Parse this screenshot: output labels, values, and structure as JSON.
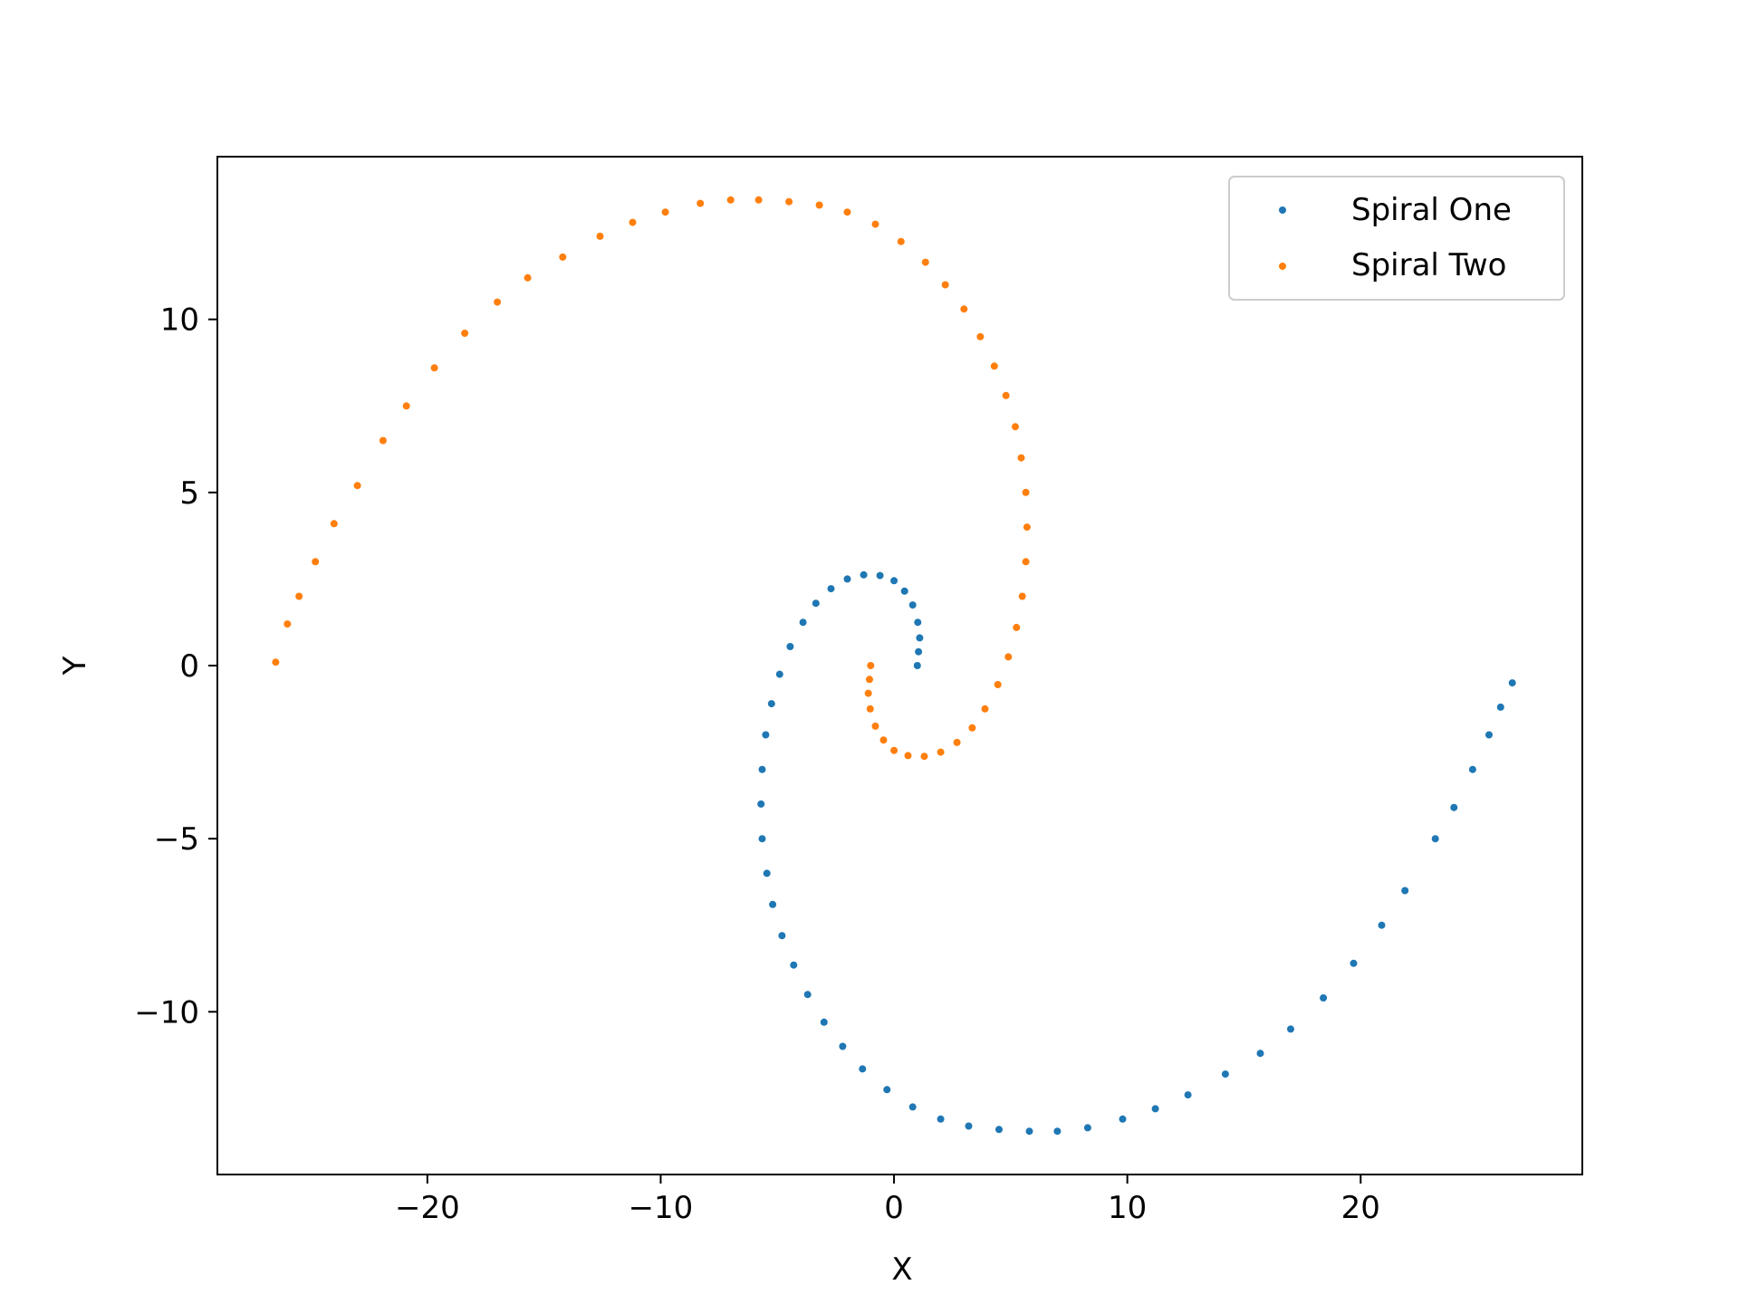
{
  "chart_data": {
    "type": "scatter",
    "title": "",
    "xlabel": "X",
    "ylabel": "Y",
    "xlim": [
      -29.0,
      29.5
    ],
    "ylim": [
      -14.7,
      14.7
    ],
    "xticks": [
      -20,
      -10,
      0,
      10,
      20
    ],
    "xtick_labels": [
      "−20",
      "−10",
      "0",
      "10",
      "20"
    ],
    "yticks": [
      -10,
      -5,
      0,
      5,
      10
    ],
    "ytick_labels": [
      "−10",
      "−5",
      "0",
      "5",
      "10"
    ],
    "grid": false,
    "legend_position": "top-right",
    "series": [
      {
        "name": "Spiral One",
        "color": "#1f77b4",
        "points": [
          [
            1.0,
            0.0
          ],
          [
            1.05,
            0.4
          ],
          [
            1.1,
            0.8
          ],
          [
            1.02,
            1.25
          ],
          [
            0.8,
            1.75
          ],
          [
            0.45,
            2.15
          ],
          [
            0.0,
            2.45
          ],
          [
            -0.6,
            2.6
          ],
          [
            -1.3,
            2.62
          ],
          [
            -2.0,
            2.5
          ],
          [
            -2.7,
            2.22
          ],
          [
            -3.35,
            1.8
          ],
          [
            -3.9,
            1.25
          ],
          [
            -4.45,
            0.55
          ],
          [
            -4.9,
            -0.25
          ],
          [
            -5.25,
            -1.1
          ],
          [
            -5.5,
            -2.0
          ],
          [
            -5.65,
            -3.0
          ],
          [
            -5.7,
            -4.0
          ],
          [
            -5.65,
            -5.0
          ],
          [
            -5.45,
            -6.0
          ],
          [
            -5.2,
            -6.9
          ],
          [
            -4.8,
            -7.8
          ],
          [
            -4.3,
            -8.65
          ],
          [
            -3.7,
            -9.5
          ],
          [
            -3.0,
            -10.3
          ],
          [
            -2.2,
            -11.0
          ],
          [
            -1.35,
            -11.65
          ],
          [
            -0.3,
            -12.25
          ],
          [
            0.8,
            -12.75
          ],
          [
            2.0,
            -13.1
          ],
          [
            3.2,
            -13.3
          ],
          [
            4.5,
            -13.4
          ],
          [
            5.8,
            -13.45
          ],
          [
            7.0,
            -13.45
          ],
          [
            8.3,
            -13.35
          ],
          [
            9.8,
            -13.1
          ],
          [
            11.2,
            -12.8
          ],
          [
            12.6,
            -12.4
          ],
          [
            14.2,
            -11.8
          ],
          [
            15.7,
            -11.2
          ],
          [
            17.0,
            -10.5
          ],
          [
            18.4,
            -9.6
          ],
          [
            19.7,
            -8.6
          ],
          [
            20.9,
            -7.5
          ],
          [
            21.9,
            -6.5
          ],
          [
            23.2,
            -5.0
          ],
          [
            24.0,
            -4.1
          ],
          [
            24.8,
            -3.0
          ],
          [
            25.5,
            -2.0
          ],
          [
            26.0,
            -1.2
          ],
          [
            26.5,
            -0.5
          ]
        ]
      },
      {
        "name": "Spiral Two",
        "color": "#ff7f0e",
        "points": [
          [
            -1.0,
            -0.0
          ],
          [
            -1.05,
            -0.4
          ],
          [
            -1.1,
            -0.8
          ],
          [
            -1.02,
            -1.25
          ],
          [
            -0.8,
            -1.75
          ],
          [
            -0.45,
            -2.15
          ],
          [
            0.0,
            -2.45
          ],
          [
            0.6,
            -2.6
          ],
          [
            1.3,
            -2.62
          ],
          [
            2.0,
            -2.5
          ],
          [
            2.7,
            -2.22
          ],
          [
            3.35,
            -1.8
          ],
          [
            3.9,
            -1.25
          ],
          [
            4.45,
            -0.55
          ],
          [
            4.9,
            0.25
          ],
          [
            5.25,
            1.1
          ],
          [
            5.5,
            2.0
          ],
          [
            5.65,
            3.0
          ],
          [
            5.7,
            4.0
          ],
          [
            5.65,
            5.0
          ],
          [
            5.45,
            6.0
          ],
          [
            5.2,
            6.9
          ],
          [
            4.8,
            7.8
          ],
          [
            4.3,
            8.65
          ],
          [
            3.7,
            9.5
          ],
          [
            3.0,
            10.3
          ],
          [
            2.2,
            11.0
          ],
          [
            1.35,
            11.65
          ],
          [
            0.3,
            12.25
          ],
          [
            -0.8,
            12.75
          ],
          [
            -2.0,
            13.1
          ],
          [
            -3.2,
            13.3
          ],
          [
            -4.5,
            13.4
          ],
          [
            -5.8,
            13.45
          ],
          [
            -7.0,
            13.45
          ],
          [
            -8.3,
            13.35
          ],
          [
            -9.8,
            13.1
          ],
          [
            -11.2,
            12.8
          ],
          [
            -12.6,
            12.4
          ],
          [
            -14.2,
            11.8
          ],
          [
            -15.7,
            11.2
          ],
          [
            -17.0,
            10.5
          ],
          [
            -18.4,
            9.6
          ],
          [
            -19.7,
            8.6
          ],
          [
            -20.9,
            7.5
          ],
          [
            -21.9,
            6.5
          ],
          [
            -23.0,
            5.2
          ],
          [
            -24.0,
            4.1
          ],
          [
            -24.8,
            3.0
          ],
          [
            -25.5,
            2.0
          ],
          [
            -26.0,
            1.2
          ],
          [
            -26.5,
            0.1
          ]
        ]
      }
    ]
  }
}
